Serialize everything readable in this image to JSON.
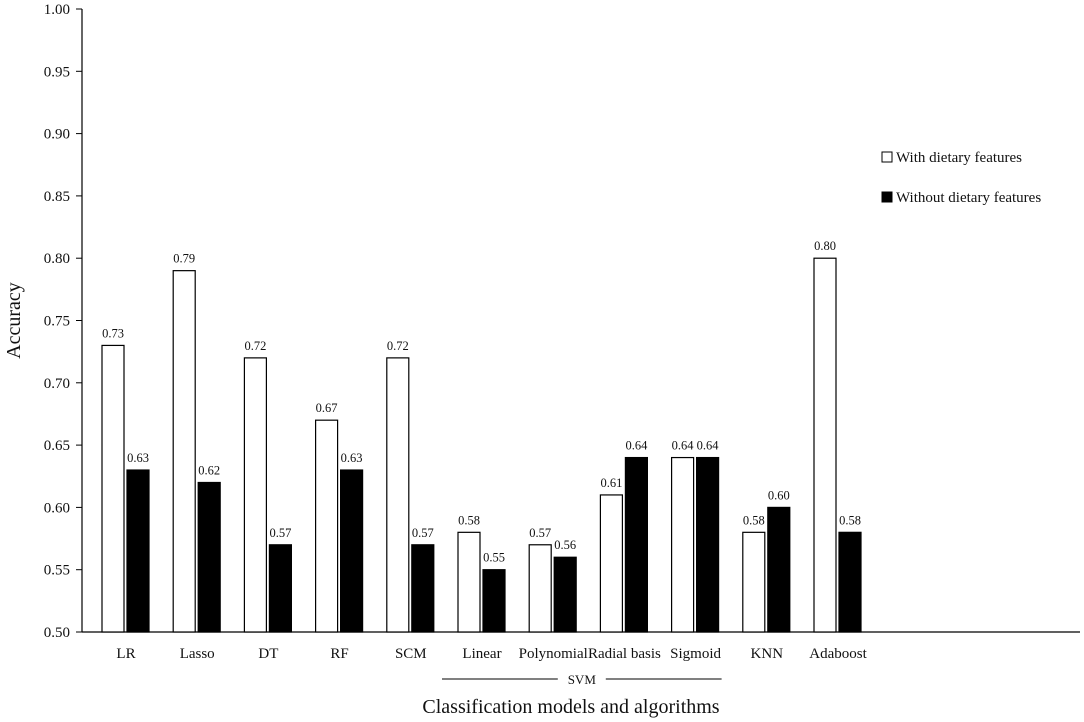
{
  "chart_data": {
    "type": "bar",
    "ylabel": "Accuracy",
    "xlabel": "Classification models and algorithms",
    "ylim": [
      0.5,
      1.0
    ],
    "yticks": [
      "0.50",
      "0.55",
      "0.60",
      "0.65",
      "0.70",
      "0.75",
      "0.80",
      "0.85",
      "0.90",
      "0.95",
      "1.00"
    ],
    "grid": false,
    "legend_position": "top-right",
    "categories": [
      "LR",
      "Lasso",
      "DT",
      "RF",
      "SCM",
      "Linear",
      "Polynomial",
      "Radial basis",
      "Sigmoid",
      "KNN",
      "Adaboost"
    ],
    "series": [
      {
        "name": "With dietary features",
        "color": "#ffffff",
        "values": [
          0.73,
          0.79,
          0.72,
          0.67,
          0.72,
          0.58,
          0.57,
          0.61,
          0.64,
          0.58,
          0.8
        ],
        "labels": [
          "0.73",
          "0.79",
          "0.72",
          "0.67",
          "0.72",
          "0.58",
          "0.57",
          "0.61",
          "0.64",
          "0.58",
          "0.80"
        ]
      },
      {
        "name": "Without dietary features",
        "color": "#000000",
        "values": [
          0.63,
          0.62,
          0.57,
          0.63,
          0.57,
          0.55,
          0.56,
          0.64,
          0.64,
          0.6,
          0.58
        ],
        "labels": [
          "0.63",
          "0.62",
          "0.57",
          "0.63",
          "0.57",
          "0.55",
          "0.56",
          "0.64",
          "0.64",
          "0.60",
          "0.58"
        ]
      }
    ],
    "category_group": {
      "label": "SVM",
      "categories": [
        "Linear",
        "Polynomial",
        "Radial basis",
        "Sigmoid"
      ]
    }
  }
}
